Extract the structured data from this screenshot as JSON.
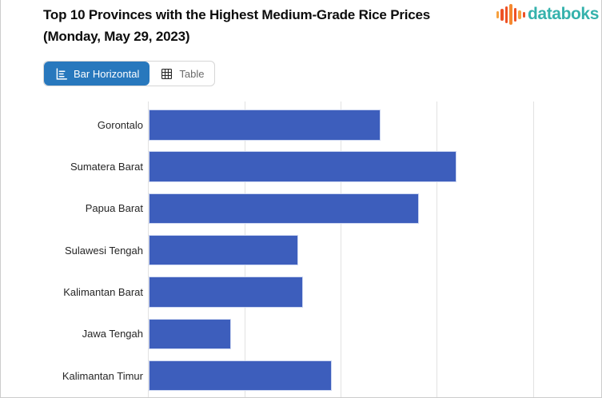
{
  "header": {
    "title_line1": "Top 10 Provinces with the Highest Medium-Grade Rice Prices",
    "title_line2": "(Monday, May 29, 2023)",
    "logo": {
      "text": "databoks",
      "text_color": "#35b2ac",
      "icon_bar_colors": [
        "#f6a13f",
        "#ee5125",
        "#ee5125",
        "#f6892f",
        "#ee5125",
        "#f6a13f",
        "#ee5125"
      ]
    }
  },
  "toolbar": {
    "bar_tab_label": "Bar Horizontal",
    "table_tab_label": "Table",
    "active_tab": "Bar Horizontal",
    "active_tab_color": "#2878bd"
  },
  "chart_data": {
    "type": "bar",
    "orientation": "horizontal",
    "title": "Top 10 Provinces with the Highest Medium-Grade Rice Prices (Monday, May 29, 2023)",
    "categories": [
      "Gorontalo",
      "Sumatera Barat",
      "Papua Barat",
      "Sulawesi Tengah",
      "Kalimantan Barat",
      "Jawa Tengah",
      "Kalimantan Timur"
    ],
    "values_pct_of_plot_width": [
      51.0,
      67.7,
      59.4,
      32.9,
      33.9,
      18.1,
      40.2
    ],
    "bar_color": "#3d5ebc",
    "gridline_pct_positions": [
      0,
      21.2,
      42.3,
      63.5,
      84.7
    ],
    "gridline_color": "#e2e2e2",
    "x_tick_labels": [],
    "legend": "none",
    "note": "X-axis value labels and remaining rows of the Top 10 are cropped outside the visible screenshot; bar lengths recorded as percent of visible plot width (axis line at left of bars)."
  }
}
